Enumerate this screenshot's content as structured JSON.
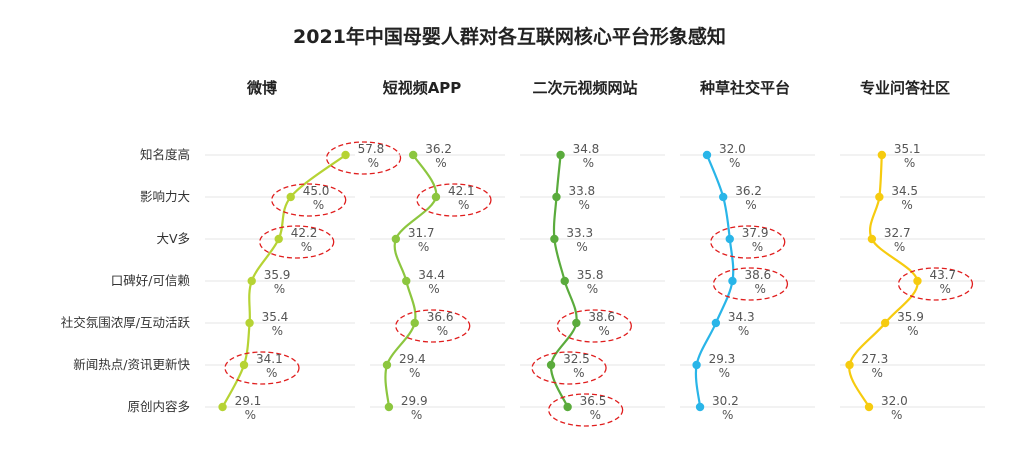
{
  "chart_data": {
    "type": "line",
    "title": "2021年中国母婴人群对各互联网核心平台形象感知",
    "categories": [
      "知名度高",
      "影响力大",
      "大V多",
      "口碑好/可信赖",
      "社交氛围浓厚/互动活跃",
      "新闻热点/资讯更新快",
      "原创内容多"
    ],
    "unit": "%",
    "grid": true,
    "series": [
      {
        "name": "微博",
        "color": "#b6d334",
        "values": [
          57.8,
          45.0,
          42.2,
          35.9,
          35.4,
          34.1,
          29.1
        ],
        "highlighted": [
          0,
          1,
          2,
          5
        ]
      },
      {
        "name": "短视频APP",
        "color": "#8cc63f",
        "values": [
          36.2,
          42.1,
          31.7,
          34.4,
          36.6,
          29.4,
          29.9
        ],
        "highlighted": [
          1,
          4
        ]
      },
      {
        "name": "二次元视频网站",
        "color": "#5aab3c",
        "values": [
          34.8,
          33.8,
          33.3,
          35.8,
          38.6,
          32.5,
          36.5
        ],
        "highlighted": [
          4,
          5,
          6
        ]
      },
      {
        "name": "种草社交平台",
        "color": "#29b5e8",
        "values": [
          32.0,
          36.2,
          37.9,
          38.6,
          34.3,
          29.3,
          30.2
        ],
        "highlighted": [
          2,
          3
        ]
      },
      {
        "name": "专业问答社区",
        "color": "#f6cb0f",
        "values": [
          35.1,
          34.5,
          32.7,
          43.7,
          35.9,
          27.3,
          32.0
        ],
        "highlighted": [
          3
        ]
      }
    ]
  }
}
